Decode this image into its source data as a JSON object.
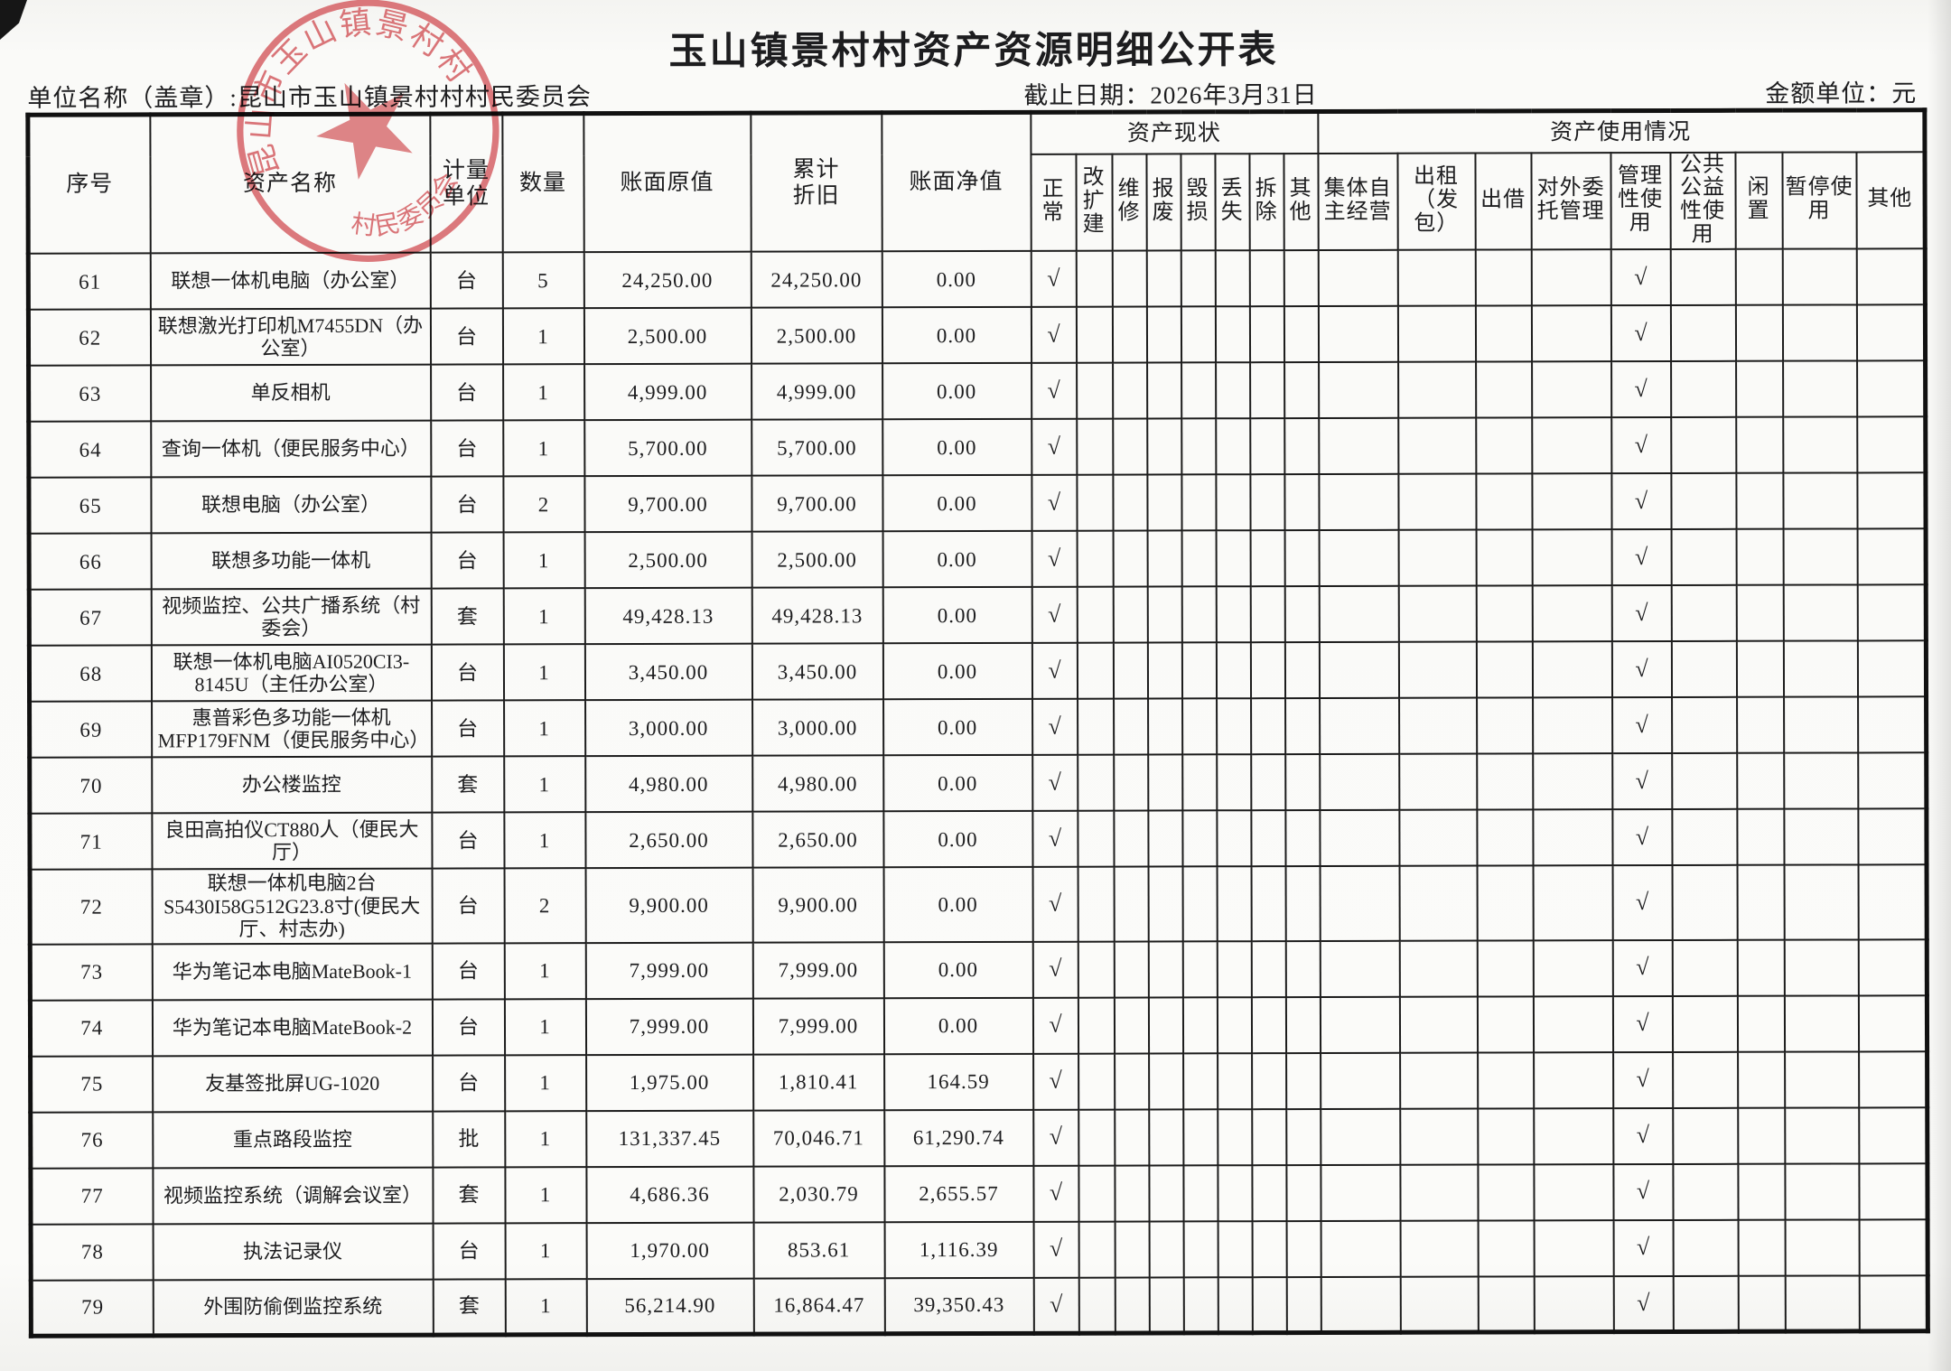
{
  "page": {
    "title": "玉山镇景村村资产资源明细公开表",
    "unit_label": "单位名称（盖章）:昆山市玉山镇景村村村民委员会",
    "deadline_label": "截止日期：2026年3月31日",
    "money_unit_label": "金额单位：元"
  },
  "stamp": {
    "ring_text": "昆山市玉山镇景村村",
    "bottom_text": "村民委员会",
    "color": "#d04f54"
  },
  "table": {
    "check_mark": "√",
    "columns": {
      "no": "序号",
      "name": "资产名称",
      "unit": "计量单位",
      "qty": "数量",
      "original": "账面原值",
      "depreciation": "累计\n折旧",
      "net": "账面净值"
    },
    "status_group": {
      "label": "资产现状",
      "cols": [
        "正常",
        "改扩建",
        "维修",
        "报废",
        "毁损",
        "丢失",
        "拆除",
        "其他"
      ]
    },
    "usage_group": {
      "label": "资产使用情况",
      "cols": [
        "集体自主经营",
        "出租（发包）",
        "出借",
        "对外委托管理",
        "管理性使用",
        "公共公益性使用",
        "闲置",
        "暂停使用",
        "其他"
      ]
    },
    "rows": [
      {
        "no": "61",
        "name": "联想一体机电脑（办公室）",
        "unit": "台",
        "qty": "5",
        "original": "24,250.00",
        "depreciation": "24,250.00",
        "net": "0.00",
        "status_check": "正常",
        "usage_check": "管理性使用"
      },
      {
        "no": "62",
        "name": "联想激光打印机M7455DN（办公室）",
        "unit": "台",
        "qty": "1",
        "original": "2,500.00",
        "depreciation": "2,500.00",
        "net": "0.00",
        "status_check": "正常",
        "usage_check": "管理性使用"
      },
      {
        "no": "63",
        "name": "单反相机",
        "unit": "台",
        "qty": "1",
        "original": "4,999.00",
        "depreciation": "4,999.00",
        "net": "0.00",
        "status_check": "正常",
        "usage_check": "管理性使用"
      },
      {
        "no": "64",
        "name": "查询一体机（便民服务中心）",
        "unit": "台",
        "qty": "1",
        "original": "5,700.00",
        "depreciation": "5,700.00",
        "net": "0.00",
        "status_check": "正常",
        "usage_check": "管理性使用"
      },
      {
        "no": "65",
        "name": "联想电脑（办公室）",
        "unit": "台",
        "qty": "2",
        "original": "9,700.00",
        "depreciation": "9,700.00",
        "net": "0.00",
        "status_check": "正常",
        "usage_check": "管理性使用"
      },
      {
        "no": "66",
        "name": "联想多功能一体机",
        "unit": "台",
        "qty": "1",
        "original": "2,500.00",
        "depreciation": "2,500.00",
        "net": "0.00",
        "status_check": "正常",
        "usage_check": "管理性使用"
      },
      {
        "no": "67",
        "name": "视频监控、公共广播系统（村委会）",
        "unit": "套",
        "qty": "1",
        "original": "49,428.13",
        "depreciation": "49,428.13",
        "net": "0.00",
        "status_check": "正常",
        "usage_check": "管理性使用"
      },
      {
        "no": "68",
        "name": "联想一体机电脑AI0520CI3-8145U（主任办公室）",
        "unit": "台",
        "qty": "1",
        "original": "3,450.00",
        "depreciation": "3,450.00",
        "net": "0.00",
        "status_check": "正常",
        "usage_check": "管理性使用"
      },
      {
        "no": "69",
        "name": "惠普彩色多功能一体机MFP179FNM（便民服务中心）",
        "unit": "台",
        "qty": "1",
        "original": "3,000.00",
        "depreciation": "3,000.00",
        "net": "0.00",
        "status_check": "正常",
        "usage_check": "管理性使用"
      },
      {
        "no": "70",
        "name": "办公楼监控",
        "unit": "套",
        "qty": "1",
        "original": "4,980.00",
        "depreciation": "4,980.00",
        "net": "0.00",
        "status_check": "正常",
        "usage_check": "管理性使用"
      },
      {
        "no": "71",
        "name": "良田高拍仪CT880人（便民大厅）",
        "unit": "台",
        "qty": "1",
        "original": "2,650.00",
        "depreciation": "2,650.00",
        "net": "0.00",
        "status_check": "正常",
        "usage_check": "管理性使用"
      },
      {
        "no": "72",
        "name": "联想一体机电脑2台S5430I58G512G23.8寸(便民大厅、村志办)",
        "unit": "台",
        "qty": "2",
        "original": "9,900.00",
        "depreciation": "9,900.00",
        "net": "0.00",
        "status_check": "正常",
        "usage_check": "管理性使用"
      },
      {
        "no": "73",
        "name": "华为笔记本电脑MateBook-1",
        "unit": "台",
        "qty": "1",
        "original": "7,999.00",
        "depreciation": "7,999.00",
        "net": "0.00",
        "status_check": "正常",
        "usage_check": "管理性使用"
      },
      {
        "no": "74",
        "name": "华为笔记本电脑MateBook-2",
        "unit": "台",
        "qty": "1",
        "original": "7,999.00",
        "depreciation": "7,999.00",
        "net": "0.00",
        "status_check": "正常",
        "usage_check": "管理性使用"
      },
      {
        "no": "75",
        "name": "友基签批屏UG-1020",
        "unit": "台",
        "qty": "1",
        "original": "1,975.00",
        "depreciation": "1,810.41",
        "net": "164.59",
        "status_check": "正常",
        "usage_check": "管理性使用"
      },
      {
        "no": "76",
        "name": "重点路段监控",
        "unit": "批",
        "qty": "1",
        "original": "131,337.45",
        "depreciation": "70,046.71",
        "net": "61,290.74",
        "status_check": "正常",
        "usage_check": "管理性使用"
      },
      {
        "no": "77",
        "name": "视频监控系统（调解会议室）",
        "unit": "套",
        "qty": "1",
        "original": "4,686.36",
        "depreciation": "2,030.79",
        "net": "2,655.57",
        "status_check": "正常",
        "usage_check": "管理性使用"
      },
      {
        "no": "78",
        "name": "执法记录仪",
        "unit": "台",
        "qty": "1",
        "original": "1,970.00",
        "depreciation": "853.61",
        "net": "1,116.39",
        "status_check": "正常",
        "usage_check": "管理性使用"
      },
      {
        "no": "79",
        "name": "外围防偷倒监控系统",
        "unit": "套",
        "qty": "1",
        "original": "56,214.90",
        "depreciation": "16,864.47",
        "net": "39,350.43",
        "status_check": "正常",
        "usage_check": "管理性使用"
      }
    ]
  }
}
